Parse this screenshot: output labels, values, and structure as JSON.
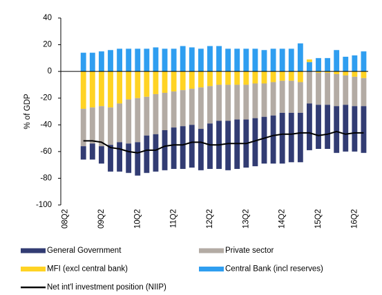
{
  "chart_data": {
    "type": "bar",
    "stacked": true,
    "y_label": "% of GDP",
    "categories": [
      "08Q2",
      null,
      null,
      null,
      "09Q2",
      null,
      null,
      null,
      "10Q2",
      null,
      null,
      null,
      "11Q2",
      null,
      null,
      null,
      "12Q2",
      null,
      null,
      null,
      "13Q2",
      null,
      null,
      null,
      "14Q2",
      null,
      null,
      null,
      "15Q2",
      null,
      null,
      null,
      "16Q2",
      null
    ],
    "ylim": [
      -100,
      40
    ],
    "yticks": [
      -100,
      -80,
      -60,
      -40,
      -20,
      0,
      20,
      40
    ],
    "grid": false,
    "series": [
      {
        "name": "Central Bank (incl reserves)",
        "color": "#2f9ef0",
        "values": [
          null,
          null,
          14,
          14,
          15,
          16,
          17,
          17,
          17,
          17,
          18,
          17,
          17,
          19,
          18,
          17,
          19,
          19,
          17,
          17,
          17,
          17,
          16,
          17,
          17,
          17,
          21,
          7,
          10,
          10,
          16,
          11,
          12,
          15
        ]
      },
      {
        "name": "MFI (excl central bank)",
        "color": "#ffd324",
        "values": [
          null,
          null,
          -28,
          -27,
          -26,
          -27,
          -24,
          -21,
          -20,
          -19,
          -17,
          -16,
          -15,
          -14,
          -13,
          -12,
          -11,
          -10,
          -10,
          -10,
          -10,
          -9,
          -9,
          -8,
          -7,
          -7,
          -8,
          2,
          -1,
          -1,
          -2,
          -3,
          -4,
          -5
        ]
      },
      {
        "name": "Private sector",
        "color": "#b3aba4",
        "values": [
          null,
          null,
          -28,
          -27,
          -30,
          -28,
          -29,
          -33,
          -33,
          -29,
          -30,
          -28,
          -27,
          -27,
          -27,
          -31,
          -28,
          -27,
          -27,
          -26,
          -26,
          -26,
          -25,
          -25,
          -24,
          -24,
          -23,
          -24,
          -24,
          -24,
          -24,
          -22,
          -22,
          -21
        ]
      },
      {
        "name": "General Government",
        "color": "#323c73",
        "values": [
          null,
          null,
          -10,
          -12,
          -13,
          -20,
          -22,
          -22,
          -25,
          -28,
          -28,
          -30,
          -31,
          -32,
          -32,
          -31,
          -34,
          -36,
          -37,
          -37,
          -36,
          -36,
          -35,
          -36,
          -38,
          -37,
          -37,
          -35,
          -33,
          -33,
          -35,
          -35,
          -34,
          -35
        ]
      },
      {
        "name": "Net int'l investment position (NIIP)",
        "color": "#000000",
        "type": "line",
        "values": [
          null,
          null,
          -52,
          -52,
          -53,
          -57,
          -58,
          -60,
          -61,
          -59,
          -59,
          -56,
          -55,
          -55,
          -53,
          -53,
          -55,
          -55,
          -54,
          -54,
          -54,
          -52,
          -50,
          -48,
          -47,
          -47,
          -46,
          -46,
          -48,
          -47,
          -45,
          -47,
          -46,
          -46
        ]
      }
    ],
    "legend_order": [
      3,
      2,
      1,
      0,
      4
    ]
  }
}
